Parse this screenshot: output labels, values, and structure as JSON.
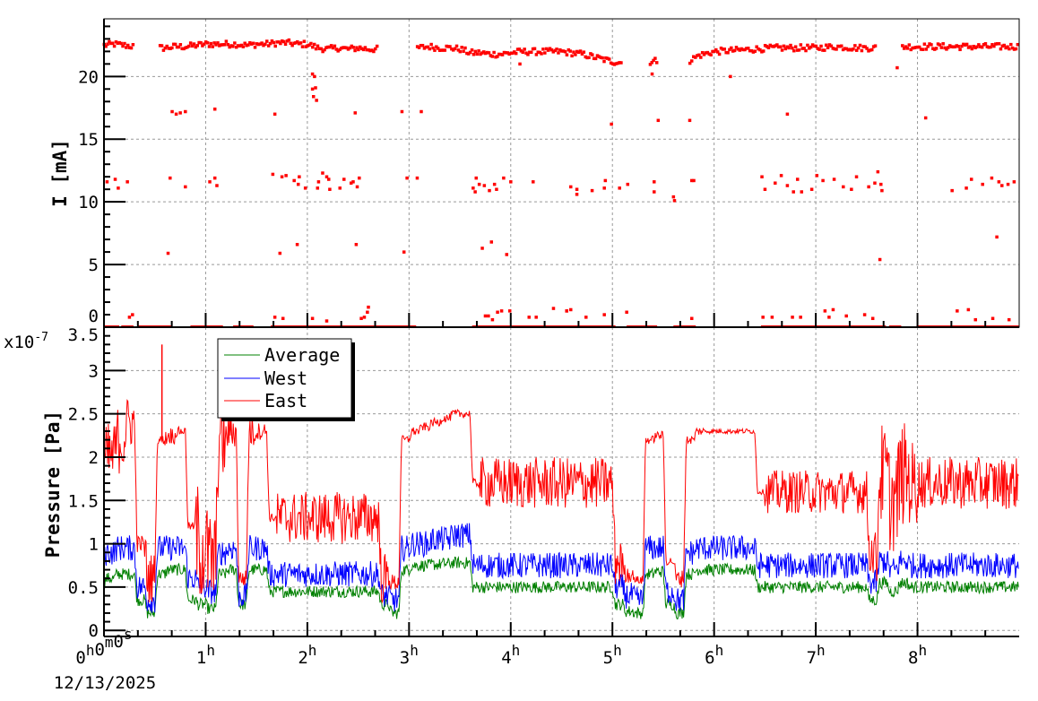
{
  "chart_data": [
    {
      "type": "scatter",
      "ylabel": "I [mA]",
      "ylim": [
        0,
        24.6
      ],
      "xlim_hours": [
        0,
        9
      ],
      "yticks": [
        "0",
        "5",
        "10",
        "15",
        "20"
      ],
      "grid": true,
      "color": "#ff0000",
      "baseline": {
        "hours": [
          0,
          0.1,
          0.2,
          0.3,
          0.35,
          0.55,
          0.6,
          0.7,
          0.8,
          0.9,
          1.0,
          1.1,
          1.2,
          1.3,
          1.4,
          1.5,
          1.6,
          1.7,
          1.8,
          1.9,
          2.0,
          2.1,
          2.2,
          2.3,
          2.4,
          2.5,
          2.6,
          2.7,
          2.73,
          3.08,
          3.2,
          3.3,
          3.4,
          3.5,
          3.6,
          3.7,
          3.8,
          3.9,
          4.0,
          4.1,
          4.2,
          4.3,
          4.4,
          4.5,
          4.6,
          4.7,
          4.8,
          4.9,
          5.0,
          5.1,
          5.17,
          5.37,
          5.45,
          5.55,
          5.76,
          5.85,
          5.95,
          6.0,
          6.2,
          6.4,
          6.6,
          6.8,
          7.0,
          7.2,
          7.4,
          7.6,
          7.68,
          7.85,
          8.0,
          8.2,
          8.4,
          8.6,
          8.8,
          9.0
        ],
        "values": [
          22.5,
          22.6,
          22.5,
          22.4,
          null,
          22.3,
          22.3,
          22.4,
          22.4,
          22.5,
          22.6,
          22.6,
          22.6,
          22.6,
          22.5,
          22.6,
          22.6,
          22.7,
          22.7,
          22.6,
          22.6,
          22.3,
          22.2,
          22.3,
          22.2,
          22.3,
          22.2,
          22.2,
          null,
          22.3,
          22.4,
          22.3,
          22.3,
          22.2,
          21.9,
          21.9,
          21.8,
          21.8,
          21.9,
          22.0,
          22.0,
          22.0,
          22.0,
          22.0,
          21.9,
          21.8,
          21.6,
          21.4,
          21.2,
          21.1,
          null,
          21.2,
          21.3,
          null,
          21.3,
          21.7,
          21.9,
          22.0,
          22.1,
          22.2,
          22.3,
          22.3,
          22.3,
          22.4,
          22.3,
          22.3,
          null,
          22.4,
          22.4,
          22.4,
          22.4,
          22.4,
          22.4,
          22.4
        ]
      },
      "zero_segments_hours": [
        [
          0,
          0.15
        ],
        [
          0.17,
          0.29
        ],
        [
          0.34,
          0.67
        ],
        [
          0.85,
          1.17
        ],
        [
          1.27,
          1.47
        ],
        [
          1.64,
          3.07
        ],
        [
          3.62,
          5.03
        ],
        [
          5.14,
          5.44
        ],
        [
          5.6,
          5.82
        ],
        [
          6.46,
          7.69
        ],
        [
          7.72,
          7.84
        ],
        [
          7.99,
          9.0
        ]
      ],
      "points": [
        [
          0.67,
          17.2
        ],
        [
          0.71,
          17.0
        ],
        [
          0.75,
          17.1
        ],
        [
          0.8,
          17.2
        ],
        [
          1.09,
          17.4
        ],
        [
          1.68,
          17.0
        ],
        [
          2.05,
          20.2
        ],
        [
          2.07,
          20.0
        ],
        [
          2.05,
          19.0
        ],
        [
          2.08,
          19.1
        ],
        [
          2.06,
          18.4
        ],
        [
          2.09,
          18.1
        ],
        [
          2.47,
          17.1
        ],
        [
          2.93,
          17.2
        ],
        [
          3.12,
          17.2
        ],
        [
          4.09,
          21.0
        ],
        [
          0.03,
          11.6
        ],
        [
          0.11,
          11.8
        ],
        [
          0.14,
          11.1
        ],
        [
          0.23,
          11.6
        ],
        [
          0.65,
          11.9
        ],
        [
          0.8,
          11.2
        ],
        [
          1.04,
          11.6
        ],
        [
          1.09,
          11.9
        ],
        [
          1.11,
          11.3
        ],
        [
          1.66,
          12.2
        ],
        [
          1.75,
          12.0
        ],
        [
          1.79,
          12.1
        ],
        [
          1.87,
          11.7
        ],
        [
          1.92,
          12.0
        ],
        [
          1.91,
          11.4
        ],
        [
          1.98,
          11.1
        ],
        [
          2.1,
          11.1
        ],
        [
          2.11,
          11.6
        ],
        [
          2.15,
          12.3
        ],
        [
          2.19,
          12.0
        ],
        [
          2.21,
          11.8
        ],
        [
          2.22,
          11.0
        ],
        [
          2.32,
          11.1
        ],
        [
          2.36,
          11.8
        ],
        [
          2.43,
          11.5
        ],
        [
          2.45,
          11.6
        ],
        [
          2.49,
          11.2
        ],
        [
          2.51,
          11.9
        ],
        [
          2.98,
          11.9
        ],
        [
          3.08,
          11.9
        ],
        [
          3.63,
          11.1
        ],
        [
          3.65,
          10.8
        ],
        [
          3.66,
          11.9
        ],
        [
          3.69,
          11.4
        ],
        [
          3.74,
          11.3
        ],
        [
          3.79,
          10.9
        ],
        [
          3.84,
          11.4
        ],
        [
          3.86,
          11.0
        ],
        [
          3.93,
          11.9
        ],
        [
          4.0,
          11.6
        ],
        [
          4.22,
          11.6
        ],
        [
          0.63,
          5.9
        ],
        [
          1.73,
          5.9
        ],
        [
          1.9,
          6.6
        ],
        [
          2.48,
          6.6
        ],
        [
          2.95,
          6.0
        ],
        [
          3.72,
          6.3
        ],
        [
          3.81,
          6.8
        ],
        [
          3.96,
          5.8
        ],
        [
          0.28,
          1.0
        ],
        [
          0.25,
          0.8
        ],
        [
          1.68,
          0.8
        ],
        [
          1.76,
          0.7
        ],
        [
          2.05,
          0.7
        ],
        [
          2.19,
          0.5
        ],
        [
          2.6,
          1.6
        ],
        [
          2.59,
          1.2
        ],
        [
          2.56,
          0.8
        ],
        [
          2.53,
          0.7
        ],
        [
          3.75,
          0.9
        ],
        [
          3.78,
          0.9
        ],
        [
          3.82,
          0.6
        ],
        [
          3.87,
          1.2
        ],
        [
          3.91,
          1.3
        ],
        [
          3.99,
          1.3
        ],
        [
          4.18,
          0.8
        ],
        [
          4.25,
          0.8
        ],
        [
          4.42,
          1.5
        ],
        [
          4.55,
          1.3
        ],
        [
          4.99,
          16.2
        ],
        [
          5.45,
          16.5
        ],
        [
          5.76,
          16.5
        ],
        [
          6.72,
          17.0
        ],
        [
          8.08,
          16.7
        ],
        [
          5.39,
          20.2
        ],
        [
          6.16,
          20.0
        ],
        [
          7.8,
          20.7
        ],
        [
          7.63,
          5.4
        ],
        [
          8.78,
          7.2
        ],
        [
          4.59,
          11.2
        ],
        [
          4.65,
          11.0
        ],
        [
          4.65,
          10.6
        ],
        [
          4.8,
          10.9
        ],
        [
          4.92,
          11.1
        ],
        [
          4.93,
          11.7
        ],
        [
          5.07,
          11.1
        ],
        [
          5.15,
          11.4
        ],
        [
          5.41,
          11.6
        ],
        [
          5.41,
          10.8
        ],
        [
          5.6,
          10.4
        ],
        [
          5.61,
          10.1
        ],
        [
          5.78,
          11.7
        ],
        [
          5.8,
          11.7
        ],
        [
          6.47,
          12.0
        ],
        [
          6.5,
          11.0
        ],
        [
          6.6,
          11.5
        ],
        [
          6.66,
          12.1
        ],
        [
          6.72,
          11.3
        ],
        [
          6.78,
          10.8
        ],
        [
          6.82,
          11.8
        ],
        [
          6.86,
          10.8
        ],
        [
          6.96,
          11.0
        ],
        [
          7.01,
          12.1
        ],
        [
          7.07,
          11.7
        ],
        [
          7.18,
          11.8
        ],
        [
          7.27,
          11.2
        ],
        [
          7.35,
          11.0
        ],
        [
          7.4,
          12.0
        ],
        [
          7.52,
          11.2
        ],
        [
          7.58,
          11.5
        ],
        [
          7.61,
          12.4
        ],
        [
          7.64,
          11.4
        ],
        [
          7.65,
          10.9
        ],
        [
          8.34,
          10.9
        ],
        [
          8.48,
          11.1
        ],
        [
          8.53,
          11.8
        ],
        [
          8.64,
          11.4
        ],
        [
          8.73,
          11.9
        ],
        [
          8.8,
          11.6
        ],
        [
          8.83,
          11.3
        ],
        [
          8.89,
          11.4
        ],
        [
          8.95,
          11.6
        ],
        [
          4.55,
          1.3
        ],
        [
          4.59,
          1.4
        ],
        [
          4.74,
          0.8
        ],
        [
          4.92,
          1.0
        ],
        [
          5.14,
          1.2
        ],
        [
          5.78,
          0.7
        ],
        [
          6.48,
          0.8
        ],
        [
          6.57,
          0.8
        ],
        [
          6.77,
          0.8
        ],
        [
          6.85,
          0.8
        ],
        [
          7.09,
          1.3
        ],
        [
          7.17,
          1.4
        ],
        [
          7.13,
          0.8
        ],
        [
          7.3,
          0.9
        ],
        [
          7.48,
          1.0
        ],
        [
          7.56,
          0.7
        ],
        [
          8.39,
          1.3
        ],
        [
          8.5,
          1.4
        ],
        [
          8.57,
          0.6
        ],
        [
          8.74,
          0.7
        ],
        [
          8.9,
          0.6
        ]
      ]
    },
    {
      "type": "line",
      "ylabel": "Pressure [Pa]",
      "y_multiplier": "x10",
      "y_exponent": "-7",
      "ylim": [
        -0.07,
        3.5
      ],
      "xlim_hours": [
        0,
        9
      ],
      "yticks": [
        "0",
        "0.5",
        "1",
        "1.5",
        "2",
        "2.5",
        "3",
        "3.5"
      ],
      "xticks": [
        {
          "main": "0",
          "sup": "h",
          "main2": "0",
          "sup2": "m",
          "main3": "0",
          "sup3": "s"
        },
        {
          "main": "1",
          "sup": "h"
        },
        {
          "main": "2",
          "sup": "h"
        },
        {
          "main": "3",
          "sup": "h"
        },
        {
          "main": "4",
          "sup": "h"
        },
        {
          "main": "5",
          "sup": "h"
        },
        {
          "main": "6",
          "sup": "h"
        },
        {
          "main": "7",
          "sup": "h"
        },
        {
          "main": "8",
          "sup": "h"
        }
      ],
      "date": "12/13/2025",
      "grid": true,
      "legend": {
        "placement": "top-left"
      },
      "x_step_hours": 0.1,
      "series": [
        {
          "name": "Average",
          "color": "#008000",
          "mean": [
            0.55,
            0.6,
            0.65,
            0.65,
            0.35,
            0.2,
            0.65,
            0.7,
            0.7,
            0.35,
            0.3,
            0.25,
            0.65,
            0.7,
            0.3,
            0.7,
            0.7,
            0.45,
            0.45,
            0.45,
            0.45,
            0.45,
            0.45,
            0.45,
            0.45,
            0.45,
            0.45,
            0.45,
            0.3,
            0.2,
            0.7,
            0.75,
            0.75,
            0.76,
            0.77,
            0.78,
            0.78,
            0.5,
            0.5,
            0.5,
            0.5,
            0.5,
            0.5,
            0.5,
            0.5,
            0.5,
            0.5,
            0.5,
            0.5,
            0.5,
            0.5,
            0.3,
            0.22,
            0.2,
            0.65,
            0.68,
            0.3,
            0.2,
            0.65,
            0.7,
            0.7,
            0.7,
            0.7,
            0.7,
            0.7,
            0.5,
            0.5,
            0.5,
            0.5,
            0.5,
            0.5,
            0.5,
            0.5,
            0.5,
            0.5,
            0.5,
            0.35,
            0.55,
            0.45,
            0.55,
            0.5,
            0.5,
            0.5,
            0.5,
            0.5,
            0.5,
            0.5,
            0.5,
            0.5,
            0.5,
            0.5
          ],
          "spread": 0.07
        },
        {
          "name": "West",
          "color": "#0000ff",
          "mean": [
            0.8,
            0.9,
            0.95,
            0.95,
            0.5,
            0.35,
            0.95,
            0.95,
            0.95,
            0.6,
            0.5,
            0.45,
            0.9,
            0.95,
            0.4,
            0.95,
            0.95,
            0.65,
            0.65,
            0.65,
            0.65,
            0.65,
            0.65,
            0.65,
            0.65,
            0.65,
            0.65,
            0.65,
            0.4,
            0.35,
            0.95,
            1.0,
            1.0,
            1.05,
            1.05,
            1.1,
            1.1,
            0.75,
            0.75,
            0.75,
            0.75,
            0.75,
            0.75,
            0.75,
            0.75,
            0.75,
            0.75,
            0.75,
            0.75,
            0.75,
            0.75,
            0.5,
            0.4,
            0.35,
            0.95,
            0.95,
            0.45,
            0.35,
            0.9,
            0.95,
            0.95,
            0.95,
            0.95,
            0.95,
            0.95,
            0.75,
            0.75,
            0.75,
            0.75,
            0.75,
            0.75,
            0.75,
            0.75,
            0.75,
            0.75,
            0.75,
            0.55,
            0.8,
            0.7,
            0.8,
            0.75,
            0.75,
            0.75,
            0.75,
            0.75,
            0.75,
            0.75,
            0.75,
            0.75,
            0.75,
            0.75
          ],
          "spread": 0.15
        },
        {
          "name": "East",
          "color": "#ff0000",
          "mean": [
            1.8,
            2.0,
            2.2,
            2.4,
            1.0,
            0.6,
            2.2,
            2.25,
            2.3,
            1.2,
            1.0,
            0.8,
            2.2,
            2.3,
            0.6,
            2.3,
            2.3,
            1.3,
            1.3,
            1.3,
            1.3,
            1.3,
            1.3,
            1.3,
            1.3,
            1.3,
            1.3,
            1.3,
            0.6,
            0.55,
            2.2,
            2.3,
            2.35,
            2.4,
            2.45,
            2.5,
            2.5,
            1.7,
            1.7,
            1.7,
            1.7,
            1.7,
            1.7,
            1.7,
            1.7,
            1.7,
            1.7,
            1.7,
            1.7,
            1.7,
            1.7,
            0.8,
            0.65,
            0.58,
            2.2,
            2.25,
            0.8,
            0.6,
            2.2,
            2.3,
            2.3,
            2.3,
            2.3,
            2.3,
            2.3,
            1.6,
            1.6,
            1.6,
            1.6,
            1.6,
            1.6,
            1.6,
            1.6,
            1.6,
            1.6,
            1.6,
            0.9,
            1.8,
            1.5,
            1.8,
            1.7,
            1.7,
            1.7,
            1.7,
            1.7,
            1.7,
            1.7,
            1.7,
            1.7,
            1.7,
            1.7
          ],
          "noise": [
            0.4,
            0.4,
            0.3,
            0.1,
            0.3,
            0.05,
            0.1,
            0.05,
            0.05,
            0.7,
            0.6,
            0.5,
            0.2,
            0.1,
            0.2,
            0.1,
            0.05,
            0.3,
            0.3,
            0.3,
            0.3,
            0.3,
            0.3,
            0.3,
            0.3,
            0.3,
            0.3,
            0.3,
            0.1,
            0.05,
            0.05,
            0.05,
            0.05,
            0.05,
            0.05,
            0.05,
            0.05,
            0.3,
            0.3,
            0.3,
            0.3,
            0.3,
            0.3,
            0.3,
            0.3,
            0.3,
            0.3,
            0.3,
            0.3,
            0.3,
            0.3,
            0.1,
            0.05,
            0.05,
            0.05,
            0.05,
            0.1,
            0.05,
            0.05,
            0.03,
            0.03,
            0.03,
            0.03,
            0.03,
            0.03,
            0.25,
            0.25,
            0.25,
            0.25,
            0.25,
            0.25,
            0.25,
            0.25,
            0.25,
            0.25,
            0.25,
            0.6,
            0.6,
            0.6,
            0.5,
            0.3,
            0.3,
            0.3,
            0.3,
            0.3,
            0.3,
            0.3,
            0.3,
            0.3,
            0.3,
            0.3
          ],
          "spikes": [
            [
              0.57,
              3.3
            ]
          ]
        }
      ]
    }
  ]
}
